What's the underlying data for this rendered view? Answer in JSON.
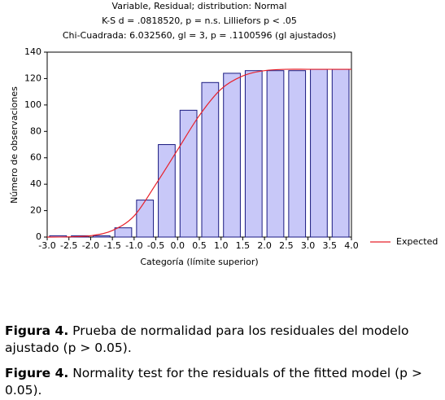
{
  "chart_data": {
    "type": "histogram",
    "title": "Variable, Residual; distribution: Normal",
    "subtitle": [
      "K-S d = .0818520, p = n.s. Lilliefors p < .05",
      "Chi-Cuadrada: 6.032560, gl = 3, p = .1100596 (gl ajustados)"
    ],
    "xlabel": "Categoría (límite superior)",
    "ylabel": "Número de observaciones",
    "bins": [
      -3,
      -2.5,
      -2,
      -1.5,
      -1,
      -0.5,
      0,
      0.5,
      1,
      1.5,
      2,
      2.5,
      3,
      3.5,
      4
    ],
    "values": [
      1,
      1,
      1,
      7,
      28,
      70,
      96,
      117,
      124,
      126,
      126,
      126,
      127,
      127
    ],
    "color": "#c8c8f8",
    "edge_color": "#1a1a80",
    "expected": {
      "name": "Expected",
      "color": "#e8202a",
      "x": [
        -3,
        -2.5,
        -2,
        -1.5,
        -1,
        -0.5,
        0,
        0.5,
        1,
        1.5,
        2,
        2.5,
        3,
        3.5,
        4
      ],
      "values": [
        0,
        0.2,
        1,
        5,
        16,
        40,
        66,
        92,
        112,
        122,
        126,
        127,
        127,
        127,
        127
      ]
    },
    "xlim": [
      -3,
      4
    ],
    "ylim": [
      0,
      140
    ],
    "xticks": [
      {
        "value": -3,
        "label": "-3.0"
      },
      {
        "value": -2.5,
        "label": "-2.5"
      },
      {
        "value": -2,
        "label": "-2.0"
      },
      {
        "value": -1.5,
        "label": "-1.5"
      },
      {
        "value": -1,
        "label": "-1.0"
      },
      {
        "value": -0.5,
        "label": "-0.5"
      },
      {
        "value": 0,
        "label": "0.0"
      },
      {
        "value": 0.5,
        "label": "0.5"
      },
      {
        "value": 1,
        "label": "1.0"
      },
      {
        "value": 1.5,
        "label": "1.5"
      },
      {
        "value": 2,
        "label": "2.0"
      },
      {
        "value": 2.5,
        "label": "2.5"
      },
      {
        "value": 3,
        "label": "3.0"
      },
      {
        "value": 3.5,
        "label": "3.5"
      },
      {
        "value": 4,
        "label": "4.0"
      }
    ],
    "yticks": [
      0,
      20,
      40,
      60,
      80,
      100,
      120,
      140
    ],
    "legend": "right"
  },
  "caption_es": {
    "label": "Figura 4.",
    "text": "Prueba de normalidad para los residuales del modelo ajustado (p > 0.05)."
  },
  "caption_en": {
    "label": "Figure 4.",
    "text": "Normality test for the residuals of the fitted model (p > 0.05)."
  }
}
